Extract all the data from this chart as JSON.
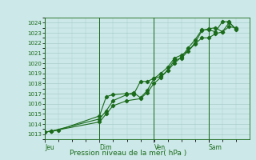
{
  "title": "Pression niveau de la mer( hPa )",
  "ylabel_ticks": [
    1013,
    1014,
    1015,
    1016,
    1017,
    1018,
    1019,
    1020,
    1021,
    1022,
    1023,
    1024
  ],
  "ylim": [
    1012.5,
    1024.5
  ],
  "background_color": "#cce8e8",
  "grid_color": "#aacccc",
  "line_color": "#1a6b1a",
  "tick_label_color": "#1a6b1a",
  "axis_label_color": "#1a6b1a",
  "xtick_labels": [
    "Jeu",
    "Dim",
    "Ven",
    "Sam"
  ],
  "xtick_positions": [
    0.0,
    0.267,
    0.533,
    0.8
  ],
  "xlim": [
    0.0,
    1.0
  ],
  "series1_x": [
    0.0,
    0.033,
    0.067,
    0.267,
    0.3,
    0.333,
    0.4,
    0.433,
    0.467,
    0.5,
    0.533,
    0.567,
    0.6,
    0.633,
    0.667,
    0.7,
    0.733,
    0.767,
    0.8,
    0.833,
    0.867,
    0.9,
    0.933
  ],
  "series1_y": [
    1013.2,
    1013.3,
    1013.4,
    1014.8,
    1016.7,
    1016.9,
    1017.0,
    1016.9,
    1018.2,
    1018.2,
    1018.5,
    1018.7,
    1019.3,
    1020.0,
    1020.6,
    1021.5,
    1022.3,
    1023.3,
    1023.3,
    1023.1,
    1024.1,
    1024.1,
    1023.3
  ],
  "series2_x": [
    0.0,
    0.033,
    0.267,
    0.3,
    0.333,
    0.4,
    0.433,
    0.467,
    0.5,
    0.533,
    0.567,
    0.6,
    0.633,
    0.667,
    0.7,
    0.733,
    0.767,
    0.8,
    0.833,
    0.867,
    0.9,
    0.933
  ],
  "series2_y": [
    1013.2,
    1013.3,
    1014.5,
    1015.3,
    1016.3,
    1016.9,
    1017.1,
    1016.6,
    1017.3,
    1018.5,
    1019.0,
    1019.6,
    1020.5,
    1020.8,
    1021.2,
    1022.0,
    1023.2,
    1023.4,
    1023.5,
    1023.1,
    1024.0,
    1023.4
  ],
  "series3_x": [
    0.0,
    0.033,
    0.267,
    0.3,
    0.333,
    0.4,
    0.467,
    0.5,
    0.533,
    0.567,
    0.6,
    0.633,
    0.667,
    0.733,
    0.767,
    0.8,
    0.833,
    0.867,
    0.9,
    0.933
  ],
  "series3_y": [
    1013.2,
    1013.3,
    1014.2,
    1015.0,
    1015.8,
    1016.3,
    1016.5,
    1017.1,
    1018.0,
    1018.6,
    1019.3,
    1020.3,
    1020.5,
    1021.9,
    1022.5,
    1022.5,
    1022.9,
    1023.1,
    1023.6,
    1023.5
  ],
  "vline_positions": [
    0.0,
    0.267,
    0.533,
    0.8
  ]
}
